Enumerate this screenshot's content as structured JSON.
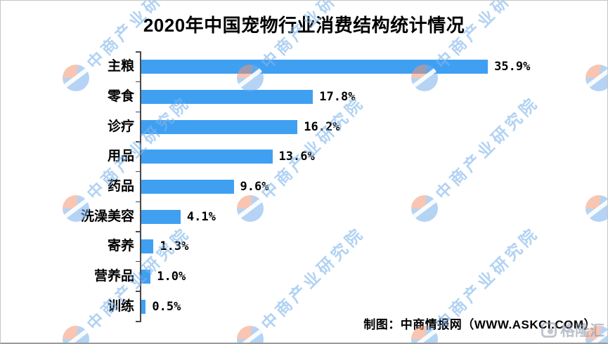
{
  "title": "2020年中国宠物行业消费结构统计情况",
  "chart_data": {
    "type": "bar",
    "orientation": "horizontal",
    "title": "2020年中国宠物行业消费结构统计情况",
    "categories": [
      "主粮",
      "零食",
      "诊疗",
      "用品",
      "药品",
      "洗澡美容",
      "寄养",
      "营养品",
      "训练"
    ],
    "values": [
      35.9,
      17.8,
      16.2,
      13.6,
      9.6,
      4.1,
      1.3,
      1.0,
      0.5
    ],
    "value_labels": [
      "35.9%",
      "17.8%",
      "16.2%",
      "13.6%",
      "9.6%",
      "4.1%",
      "1.3%",
      "1.0%",
      "0.5%"
    ],
    "unit": "%",
    "xlim": [
      0,
      40
    ],
    "grid": false,
    "legend": false,
    "bar_color": "#3FA0F2",
    "axis_color": "#4a4a4a"
  },
  "source_note": "制图：中商情报网（WWW.ASKCI.COM）",
  "watermark": {
    "text": "中商产业研究院",
    "logo_name": "askci-logo",
    "text_color": "rgba(125,180,235,0.6)",
    "logo_orange": "rgba(242,150,115,0.55)",
    "logo_blue": "rgba(120,175,235,0.55)"
  },
  "corner_watermark": {
    "text": "格隆汇",
    "color": "rgba(140,152,168,0.6)"
  }
}
